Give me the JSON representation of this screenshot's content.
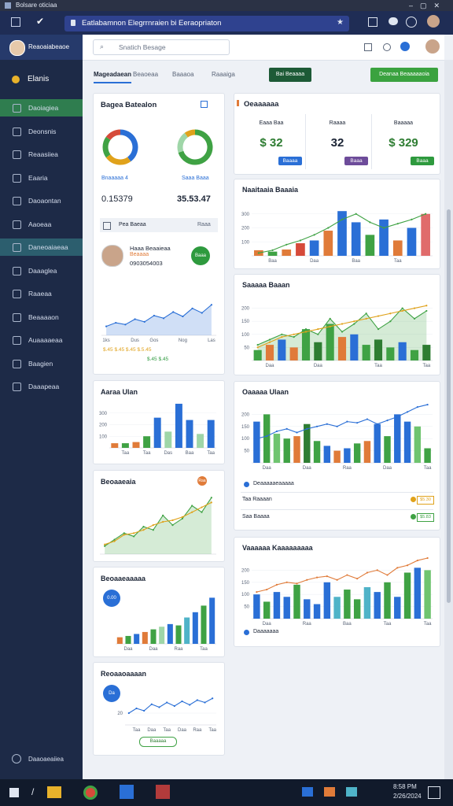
{
  "window": {
    "title": "Bolsare oticiaa"
  },
  "browser": {
    "address": "Eatlabamnon Elegrrnraien bi Eeraopriaton"
  },
  "sidebar": {
    "user": "Reaoaiabeaoe",
    "brand": "Elanis",
    "items": [
      "Daoiagiea",
      "Deonsnis",
      "Reaasiiea",
      "Eaaria",
      "Daoaontan",
      "Aaoeaa",
      "Daneoaiaeaa",
      "Daaaglea",
      "Raaeaa",
      "Beaaaaon",
      "Auaaaaeaa",
      "Baagien",
      "Daaapeaa"
    ],
    "active": {
      "0": "#2f7d4f",
      "6": "#2c5e6e"
    },
    "footer": "Daaoaeaiiea"
  },
  "search": {
    "placeholder": "Snatich Besage"
  },
  "tabs": [
    "Mageadaean",
    "Beaoeaa",
    "Baaaoa",
    "Raaaiga"
  ],
  "buttons": [
    "Bai Beaaaa",
    "Deanaa Beaaaaaoia"
  ],
  "overview": {
    "title": "Bagea Batealon",
    "donuts": [
      {
        "values": [
          40,
          25,
          20,
          15
        ],
        "colors": [
          "#2a6fd6",
          "#e0a21b",
          "#3fa244",
          "#d64a3a"
        ],
        "label": "Bnaaaaa 4",
        "value": "0.15379"
      },
      {
        "values": [
          70,
          20,
          10
        ],
        "colors": [
          "#3fa244",
          "#9fd6a8",
          "#e0a21b"
        ],
        "label": "Saaa Baaa",
        "value": "35.53.47"
      }
    ],
    "row": {
      "left": "Pea Baeaa",
      "right": "Raaa"
    },
    "person": {
      "name": "Haaa Beaaieaa",
      "role": "Beaaaa",
      "id": "0903054003",
      "action": "Baaa"
    },
    "chart": {
      "ylim": [
        0,
        50
      ],
      "categories": [
        "1ks",
        null,
        null,
        "Dus",
        null,
        "Gos",
        null,
        null,
        "Nog",
        null,
        null,
        "Las"
      ],
      "series": [
        {
          "type": "area",
          "color": "#2a6fd6",
          "values": [
            10,
            14,
            12,
            18,
            15,
            22,
            19,
            26,
            21,
            30,
            25,
            34
          ]
        }
      ]
    },
    "notes": [
      "$.45 $.45 $.45 $.5.45",
      "$.45 $.45"
    ]
  },
  "left_cards": [
    {
      "title": "Aaraa Ulan",
      "chart": {
        "ylim": [
          0,
          400
        ],
        "yticks": [
          100,
          200,
          300
        ],
        "categories": [
          null,
          "Taa",
          null,
          "Taa",
          null,
          "Das",
          null,
          "Baa",
          null,
          "Taa"
        ],
        "series": [
          {
            "type": "bar",
            "colors": [
              "#e07b39",
              "#3fa244",
              "#e07b39",
              "#3fa244",
              "#2a6fd6",
              "#9fd6a8",
              "#2a6fd6",
              "#2a6fd6",
              "#9fd6a8",
              "#2a6fd6"
            ],
            "values": [
              40,
              40,
              50,
              100,
              260,
              140,
              380,
              240,
              120,
              240
            ]
          }
        ]
      }
    },
    {
      "title": "Beoaaeaia",
      "badge": "Raa",
      "chart": {
        "ylim": [
          0,
          80
        ],
        "series": [
          {
            "type": "area",
            "color": "#3fa244",
            "values": [
              10,
              18,
              26,
              22,
              34,
              30,
              48,
              36,
              44,
              60,
              52,
              70
            ]
          },
          {
            "type": "line",
            "color": "#e0a21b",
            "values": [
              12,
              16,
              24,
              26,
              30,
              36,
              40,
              42,
              46,
              52,
              58,
              64
            ]
          }
        ]
      }
    },
    {
      "title": "Beoaaeaaaaa",
      "badge": "0.00",
      "chart": {
        "ylim": [
          0,
          80
        ],
        "categories": [
          null,
          "Daa",
          null,
          null,
          "Daa",
          null,
          null,
          "Raa",
          null,
          null,
          "Taa",
          null
        ],
        "series": [
          {
            "type": "bar",
            "colors": [
              "#e07b39",
              "#3fa244",
              "#2a6fd6",
              "#e07b39",
              "#3fa244",
              "#9fd6a8",
              "#2a6fd6",
              "#3fa244",
              "#4fb3c8",
              "#2a6fd6",
              "#3fa244",
              "#2a6fd6"
            ],
            "values": [
              10,
              12,
              15,
              18,
              22,
              26,
              30,
              28,
              40,
              48,
              58,
              70
            ]
          }
        ]
      }
    },
    {
      "title": "Reoaaoaaaan",
      "badge": "Da",
      "action": "Baaaaa",
      "chart": {
        "ylim": [
          0,
          60
        ],
        "yticks": [
          20
        ],
        "categories": [
          null,
          "Taa",
          null,
          "Daa",
          null,
          "Taa",
          null,
          "Daa",
          null,
          "Raa",
          null,
          "Taa"
        ],
        "series": [
          {
            "type": "line",
            "color": "#2a6fd6",
            "values": [
              20,
              28,
              24,
              35,
              30,
              38,
              32,
              40,
              34,
              42,
              38,
              45
            ]
          }
        ]
      }
    }
  ],
  "kpis": {
    "title": "Oeaaaaaa",
    "items": [
      {
        "label": "Eaaa Baa",
        "value": "$ 32",
        "tag": "Baaaa",
        "color": "#2a6fd6"
      },
      {
        "label": "Raaaa",
        "value": "32",
        "tag": "Baaa",
        "color": "#6d4c9a"
      },
      {
        "label": "Baaaaa",
        "value": "$ 329",
        "tag": "Baaa",
        "color": "#2e9a3e"
      }
    ]
  },
  "right_cards": [
    {
      "title": "Naaitaaia Baaaia",
      "chart": {
        "ylim": [
          0,
          400
        ],
        "yticks": [
          100,
          200,
          300
        ],
        "categories": [
          null,
          "Baa",
          null,
          null,
          "Daa",
          null,
          null,
          "Baa",
          null,
          null,
          "Taa",
          null,
          null
        ],
        "series": [
          {
            "type": "bar",
            "colors": [
              "#e07b39",
              "#3fa244",
              "#e07b39",
              "#d64a3a",
              "#2a6fd6",
              "#e07b39",
              "#2a6fd6",
              "#2a6fd6",
              "#3fa244",
              "#2a6fd6",
              "#e07b39",
              "#2a6fd6",
              "#e06b6b"
            ],
            "values": [
              40,
              30,
              45,
              90,
              110,
              180,
              320,
              240,
              150,
              260,
              110,
              200,
              300
            ]
          },
          {
            "type": "line",
            "color": "#3fa244",
            "values": [
              20,
              40,
              80,
              110,
              150,
              200,
              260,
              300,
              240,
              200,
              230,
              260,
              300
            ]
          }
        ]
      }
    },
    {
      "title": "Saaaaa Baaan",
      "chart": {
        "ylim": [
          0,
          250
        ],
        "yticks": [
          50,
          100,
          150,
          200
        ],
        "categories": [
          null,
          "Daa",
          null,
          null,
          null,
          "Daa",
          null,
          null,
          null,
          null,
          "Taa",
          null,
          null,
          null,
          "Taa"
        ],
        "series": [
          {
            "type": "area",
            "color": "#3fa244",
            "values": [
              60,
              80,
              100,
              90,
              120,
              100,
              160,
              110,
              140,
              180,
              120,
              150,
              200,
              160,
              190
            ]
          },
          {
            "type": "bar",
            "colors": [
              "#3fa244",
              "#e07b39",
              "#2a6fd6",
              "#e07b39",
              "#3fa244",
              "#2e7d32",
              "#3fa244",
              "#e07b39",
              "#2a6fd6",
              "#3fa244",
              "#2e7d32",
              "#3fa244",
              "#2a6fd6",
              "#3fa244",
              "#2e7d32"
            ],
            "values": [
              40,
              60,
              80,
              50,
              120,
              70,
              140,
              90,
              100,
              60,
              80,
              50,
              70,
              40,
              60
            ]
          },
          {
            "type": "line",
            "color": "#e0a21b",
            "values": [
              50,
              70,
              90,
              100,
              110,
              120,
              130,
              140,
              150,
              160,
              170,
              180,
              190,
              200,
              210
            ]
          }
        ]
      }
    },
    {
      "title": "Oaaaaa Ulaan",
      "chart": {
        "ylim": [
          0,
          250
        ],
        "yticks": [
          50,
          100,
          150,
          200
        ],
        "categories": [
          null,
          "Daa",
          null,
          null,
          null,
          "Daa",
          null,
          null,
          null,
          "Raa",
          null,
          null,
          null,
          "Daa",
          null,
          null,
          null,
          "Taa"
        ],
        "series": [
          {
            "type": "bar",
            "colors": [
              "#2a6fd6",
              "#3fa244",
              "#6fc46f",
              "#3fa244",
              "#e07b39",
              "#2e7d32",
              "#3fa244",
              "#2a6fd6",
              "#e07b39",
              "#2a6fd6",
              "#3fa244",
              "#e07b39",
              "#2a6fd6",
              "#3fa244",
              "#2a6fd6",
              "#2a6fd6",
              "#6fc46f",
              "#3fa244"
            ],
            "values": [
              170,
              200,
              120,
              100,
              110,
              160,
              90,
              70,
              50,
              60,
              80,
              90,
              160,
              110,
              200,
              170,
              150,
              60
            ]
          },
          {
            "type": "line",
            "color": "#2a6fd6",
            "values": [
              100,
              110,
              130,
              140,
              125,
              140,
              150,
              160,
              150,
              170,
              165,
              180,
              160,
              175,
              190,
              210,
              230,
              240
            ]
          }
        ]
      },
      "legend": "Deaaaaaeaaaaa",
      "rows": [
        {
          "label": "Taa  Raaaan",
          "value": "$5.30",
          "color": "#e0a21b"
        },
        {
          "label": "Saa  Baaaa",
          "value": "$5.83",
          "color": "#3fa244"
        }
      ]
    },
    {
      "title": "Vaaaaaa Kaaaaaaaaa",
      "chart": {
        "ylim": [
          0,
          250
        ],
        "yticks": [
          50,
          100,
          150,
          200
        ],
        "categories": [
          null,
          "Daa",
          null,
          null,
          null,
          "Raa",
          null,
          null,
          null,
          "Baa",
          null,
          null,
          null,
          "Taa",
          null,
          null,
          null,
          "Taa"
        ],
        "series": [
          {
            "type": "bar",
            "colors": [
              "#2a6fd6",
              "#3fa244",
              "#2a6fd6",
              "#2a6fd6",
              "#3fa244",
              "#2a6fd6",
              "#2a6fd6",
              "#2a6fd6",
              "#4fb3c8",
              "#3fa244",
              "#3fa244",
              "#4fb3c8",
              "#2a6fd6",
              "#3fa244",
              "#2a6fd6",
              "#3fa244",
              "#2a6fd6",
              "#6fc46f"
            ],
            "values": [
              100,
              70,
              110,
              90,
              140,
              80,
              60,
              150,
              90,
              120,
              80,
              130,
              110,
              150,
              90,
              190,
              210,
              200
            ]
          },
          {
            "type": "line",
            "color": "#e07b39",
            "values": [
              110,
              120,
              140,
              150,
              145,
              160,
              170,
              175,
              160,
              180,
              165,
              190,
              200,
              180,
              210,
              220,
              240,
              250
            ]
          }
        ]
      },
      "legend": "Daaaaaaa"
    }
  ],
  "taskbar": {
    "time": "8:58 PM",
    "date": "2/26/2024"
  }
}
